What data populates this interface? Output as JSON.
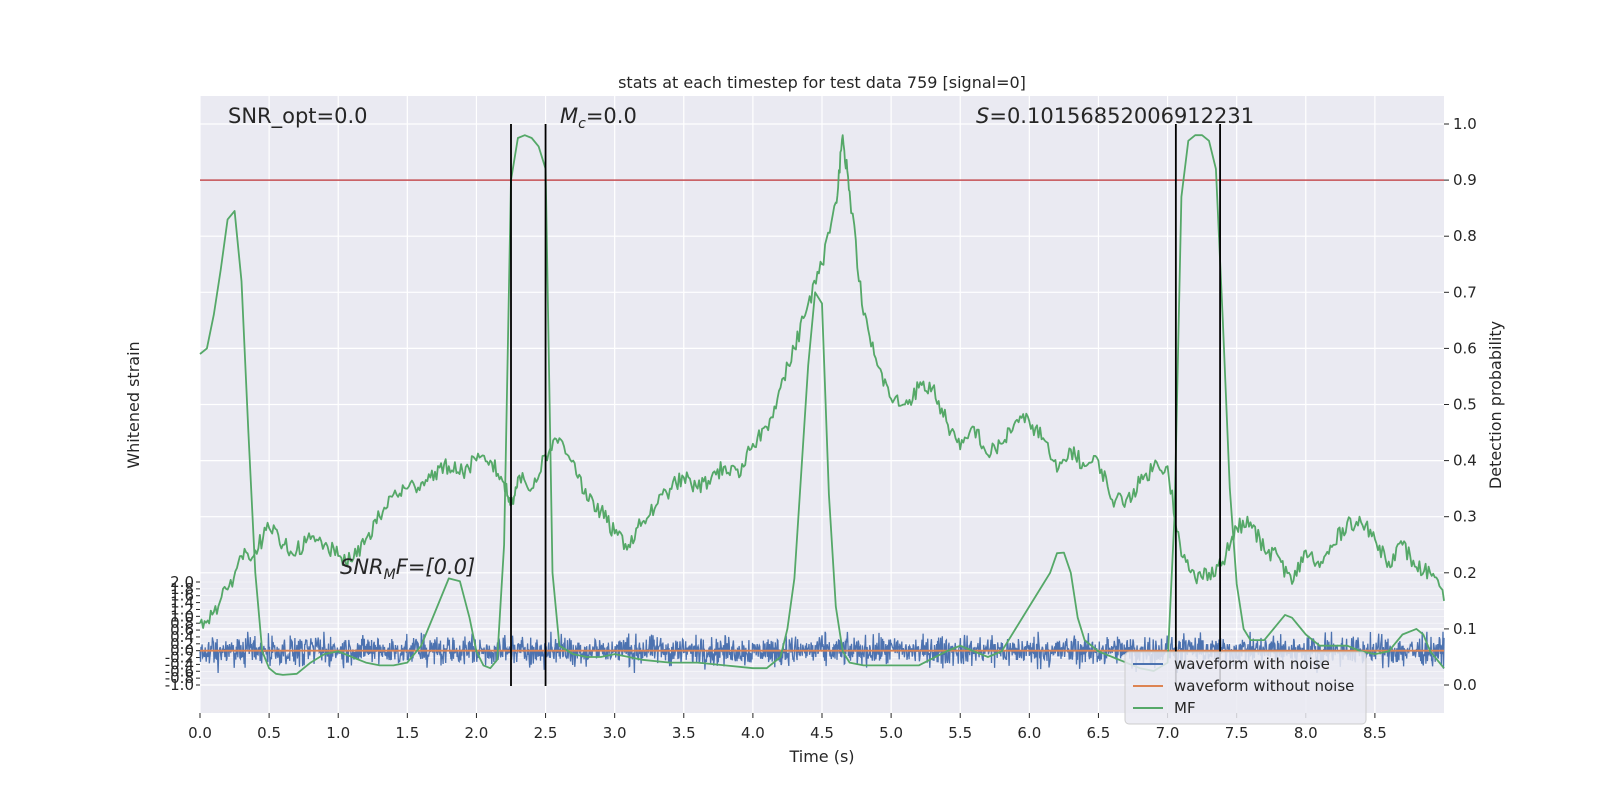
{
  "chart_data": {
    "type": "line",
    "title": "stats at each timestep for test data 759 [signal=0]",
    "xlabel": "Time (s)",
    "ylabel_left": "Whitened strain",
    "ylabel_right": "Detection probability",
    "xlim": [
      0.0,
      9.0
    ],
    "ylim_left": [
      -1.0,
      2.0
    ],
    "ylim_right": [
      0.0,
      1.0
    ],
    "x_ticks": [
      "0.0",
      "0.5",
      "1.0",
      "1.5",
      "2.0",
      "2.5",
      "3.0",
      "3.5",
      "4.0",
      "4.5",
      "5.0",
      "5.5",
      "6.0",
      "6.5",
      "7.0",
      "7.5",
      "8.0",
      "8.5"
    ],
    "y_right_ticks": [
      "0.0",
      "0.1",
      "0.2",
      "0.3",
      "0.4",
      "0.5",
      "0.6",
      "0.7",
      "0.8",
      "0.9",
      "1.0"
    ],
    "y_left_ticks": [
      "-1.0",
      "-0.8",
      "-0.6",
      "-0.4",
      "-0.2",
      "0.0",
      "0.2",
      "0.4",
      "0.6",
      "0.8",
      "1.0",
      "1.2",
      "1.4",
      "1.6",
      "1.8",
      "2.0"
    ],
    "grid": true,
    "legend_position": "bottom-right",
    "threshold": 0.9,
    "detection_bounds": [
      2.25,
      2.5,
      7.06,
      7.38
    ],
    "annotations": {
      "snr_opt": "SNR_opt=0.0",
      "mc_symbol": "M",
      "mc_sub": "c",
      "mc_value": "=0.0",
      "s_symbol": "S",
      "s_value": "=0.10156852006912231",
      "snr_mf_prefix": "SNR",
      "snr_mf_sub": "M",
      "snr_mf_suffix": "F=[0.0]"
    },
    "series": [
      {
        "name": "waveform with noise",
        "color": "#4c72b0",
        "amplitude": [
          -0.65,
          0.55
        ]
      },
      {
        "name": "waveform without noise",
        "color": "#dd8452",
        "value": 0.0
      },
      {
        "name": "MF",
        "color": "#55a868",
        "x": [
          0.0,
          0.05,
          0.1,
          0.15,
          0.2,
          0.25,
          0.3,
          0.35,
          0.4,
          0.45,
          0.5,
          0.55,
          0.6,
          0.7,
          0.8,
          0.9,
          1.0,
          1.1,
          1.2,
          1.3,
          1.4,
          1.5,
          1.6,
          1.7,
          1.8,
          1.88,
          1.95,
          2.0,
          2.05,
          2.1,
          2.15,
          2.2,
          2.25,
          2.3,
          2.35,
          2.4,
          2.45,
          2.5,
          2.55,
          2.6,
          2.7,
          2.8,
          2.9,
          3.0,
          3.2,
          3.4,
          3.6,
          3.8,
          4.0,
          4.1,
          4.2,
          4.25,
          4.3,
          4.35,
          4.4,
          4.45,
          4.5,
          4.55,
          4.6,
          4.65,
          4.7,
          4.8,
          5.0,
          5.2,
          5.4,
          5.5,
          5.6,
          5.7,
          5.8,
          5.9,
          6.0,
          6.1,
          6.15,
          6.2,
          6.25,
          6.3,
          6.35,
          6.4,
          6.5,
          6.6,
          6.7,
          6.8,
          6.9,
          7.0,
          7.05,
          7.1,
          7.15,
          7.2,
          7.25,
          7.3,
          7.35,
          7.4,
          7.45,
          7.5,
          7.55,
          7.6,
          7.7,
          7.8,
          7.85,
          7.9,
          8.0,
          8.1,
          8.2,
          8.3,
          8.4,
          8.5,
          8.6,
          8.7,
          8.8,
          8.85,
          8.9,
          9.0
        ],
        "values": [
          0.59,
          0.6,
          0.66,
          0.74,
          0.83,
          0.845,
          0.72,
          0.45,
          0.2,
          0.06,
          0.03,
          0.02,
          0.018,
          0.02,
          0.04,
          0.055,
          0.06,
          0.05,
          0.04,
          0.035,
          0.035,
          0.04,
          0.07,
          0.13,
          0.19,
          0.185,
          0.12,
          0.06,
          0.035,
          0.03,
          0.045,
          0.25,
          0.9,
          0.975,
          0.98,
          0.975,
          0.96,
          0.92,
          0.2,
          0.07,
          0.055,
          0.05,
          0.05,
          0.055,
          0.045,
          0.04,
          0.04,
          0.035,
          0.03,
          0.03,
          0.05,
          0.1,
          0.19,
          0.38,
          0.57,
          0.7,
          0.68,
          0.34,
          0.14,
          0.06,
          0.04,
          0.035,
          0.035,
          0.035,
          0.06,
          0.07,
          0.06,
          0.05,
          0.06,
          0.1,
          0.14,
          0.18,
          0.2,
          0.235,
          0.236,
          0.2,
          0.12,
          0.08,
          0.06,
          0.05,
          0.04,
          0.03,
          0.025,
          0.04,
          0.3,
          0.87,
          0.97,
          0.98,
          0.98,
          0.97,
          0.92,
          0.65,
          0.35,
          0.18,
          0.1,
          0.08,
          0.08,
          0.11,
          0.125,
          0.12,
          0.09,
          0.07,
          0.07,
          0.07,
          0.06,
          0.055,
          0.06,
          0.09,
          0.1,
          0.09,
          0.06,
          0.03
        ]
      },
      {
        "name": "",
        "color": "#55a868",
        "x": [
          0.0,
          0.1,
          0.2,
          0.3,
          0.4,
          0.5,
          0.6,
          0.7,
          0.8,
          0.9,
          1.0,
          1.1,
          1.2,
          1.3,
          1.4,
          1.5,
          1.6,
          1.7,
          1.8,
          1.9,
          2.0,
          2.1,
          2.2,
          2.25,
          2.3,
          2.4,
          2.5,
          2.6,
          2.7,
          2.8,
          2.9,
          3.0,
          3.1,
          3.2,
          3.3,
          3.4,
          3.5,
          3.6,
          3.7,
          3.8,
          3.9,
          4.0,
          4.1,
          4.2,
          4.3,
          4.4,
          4.5,
          4.6,
          4.65,
          4.7,
          4.8,
          4.9,
          5.0,
          5.1,
          5.2,
          5.3,
          5.4,
          5.5,
          5.6,
          5.7,
          5.8,
          5.9,
          6.0,
          6.1,
          6.2,
          6.3,
          6.4,
          6.5,
          6.6,
          6.7,
          6.8,
          6.9,
          7.0,
          7.1,
          7.2,
          7.3,
          7.4,
          7.5,
          7.6,
          7.7,
          7.8,
          7.9,
          8.0,
          8.1,
          8.2,
          8.3,
          8.4,
          8.5,
          8.6,
          8.7,
          8.8,
          8.9,
          9.0
        ],
        "values": [
          0.11,
          0.13,
          0.17,
          0.23,
          0.24,
          0.28,
          0.25,
          0.24,
          0.26,
          0.25,
          0.23,
          0.22,
          0.26,
          0.3,
          0.34,
          0.35,
          0.36,
          0.38,
          0.39,
          0.38,
          0.4,
          0.4,
          0.36,
          0.32,
          0.37,
          0.35,
          0.41,
          0.44,
          0.4,
          0.33,
          0.31,
          0.27,
          0.25,
          0.29,
          0.32,
          0.35,
          0.37,
          0.35,
          0.37,
          0.39,
          0.37,
          0.43,
          0.46,
          0.53,
          0.6,
          0.68,
          0.75,
          0.86,
          0.98,
          0.88,
          0.66,
          0.57,
          0.51,
          0.5,
          0.53,
          0.53,
          0.47,
          0.42,
          0.46,
          0.41,
          0.43,
          0.47,
          0.47,
          0.44,
          0.38,
          0.42,
          0.39,
          0.4,
          0.33,
          0.33,
          0.36,
          0.39,
          0.39,
          0.23,
          0.19,
          0.2,
          0.22,
          0.28,
          0.29,
          0.24,
          0.23,
          0.18,
          0.24,
          0.21,
          0.25,
          0.29,
          0.29,
          0.26,
          0.22,
          0.25,
          0.21,
          0.2,
          0.15
        ]
      }
    ],
    "colors": {
      "background": "#eaeaf2",
      "grid": "#ffffff",
      "threshold": "#c44e52",
      "bounds": "#000000"
    }
  }
}
